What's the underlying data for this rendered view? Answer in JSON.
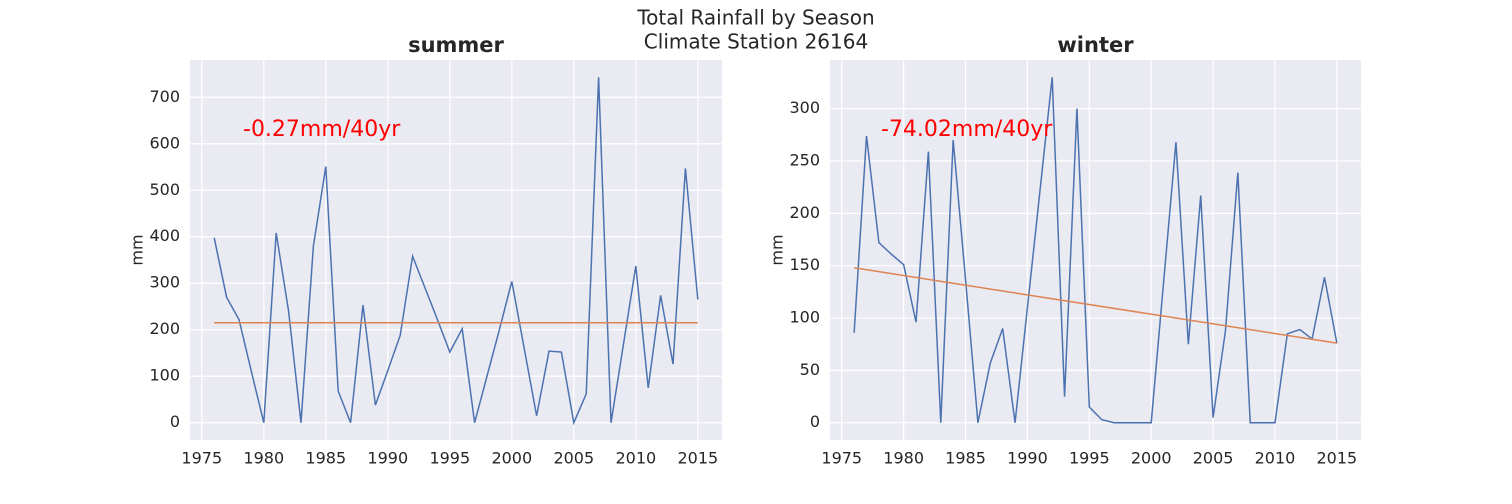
{
  "figure": {
    "title": "Total Rainfall by Season",
    "subtitle": "Climate Station 26164"
  },
  "chart_data": [
    {
      "type": "line",
      "title": "summer",
      "ylabel": "mm",
      "annotation": "-0.27mm/40yr",
      "x": [
        1976,
        1977,
        1978,
        1979,
        1980,
        1981,
        1982,
        1983,
        1984,
        1985,
        1986,
        1987,
        1988,
        1989,
        1990,
        1991,
        1992,
        1993,
        1994,
        1995,
        1996,
        1997,
        1998,
        1999,
        2000,
        2001,
        2002,
        2003,
        2004,
        2005,
        2006,
        2007,
        2008,
        2009,
        2010,
        2011,
        2012,
        2013,
        2014,
        2015
      ],
      "series": [
        {
          "color": "#4c72b0",
          "values": [
            398,
            270,
            222,
            110,
            0,
            408,
            240,
            0,
            380,
            551,
            68,
            0,
            253,
            38,
            112,
            188,
            358,
            290,
            222,
            152,
            202,
            0,
            100,
            200,
            304,
            160,
            15,
            154,
            152,
            0,
            62,
            743,
            0,
            168,
            337,
            75,
            274,
            126,
            547,
            265
          ]
        }
      ],
      "trend": {
        "color": "#dd8452",
        "x": [
          1976,
          2015
        ],
        "values": [
          215,
          215
        ]
      },
      "xlim": [
        1974.05,
        2016.95
      ],
      "xticks": [
        1975,
        1980,
        1985,
        1990,
        1995,
        2000,
        2005,
        2010,
        2015
      ],
      "ylim": [
        -37.15,
        780.15
      ],
      "yticks": [
        0,
        100,
        200,
        300,
        400,
        500,
        600,
        700
      ],
      "grid": true
    },
    {
      "type": "line",
      "title": "winter",
      "ylabel": "mm",
      "annotation": "-74.02mm/40yr",
      "x": [
        1976,
        1977,
        1978,
        1979,
        1980,
        1981,
        1982,
        1983,
        1984,
        1985,
        1986,
        1987,
        1988,
        1989,
        1990,
        1991,
        1992,
        1993,
        1994,
        1995,
        1996,
        1997,
        1998,
        1999,
        2000,
        2001,
        2002,
        2003,
        2004,
        2005,
        2006,
        2007,
        2008,
        2009,
        2010,
        2011,
        2012,
        2013,
        2014,
        2015
      ],
      "series": [
        {
          "color": "#4c72b0",
          "values": [
            86,
            274,
            172,
            161,
            151,
            96,
            259,
            0,
            270,
            137,
            0,
            57,
            90,
            0,
            110,
            220,
            330,
            25,
            300,
            15,
            3,
            0,
            0,
            0,
            0,
            134,
            268,
            75,
            217,
            5,
            88,
            239,
            0,
            0,
            0,
            85,
            89,
            80,
            139,
            76
          ]
        }
      ],
      "trend": {
        "color": "#dd8452",
        "x": [
          1976,
          2015
        ],
        "values": [
          148,
          76
        ]
      },
      "xlim": [
        1974.05,
        2016.95
      ],
      "xticks": [
        1975,
        1980,
        1985,
        1990,
        1995,
        2000,
        2005,
        2010,
        2015
      ],
      "ylim": [
        -16.5,
        346.5
      ],
      "yticks": [
        0,
        50,
        100,
        150,
        200,
        250,
        300
      ],
      "grid": true
    }
  ]
}
